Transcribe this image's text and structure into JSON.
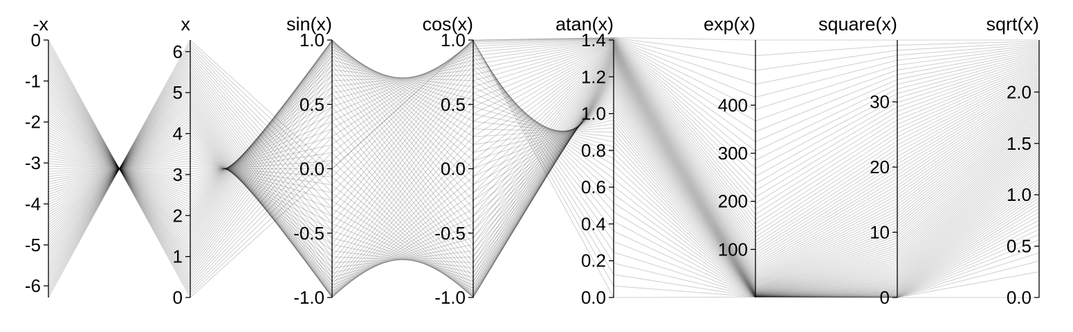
{
  "chart_data": {
    "type": "parallel_coordinates",
    "line_color": "#000000",
    "line_opacity": 0.18,
    "background": "#ffffff",
    "dimensions": [
      {
        "key": "neg_x",
        "label": "-x",
        "domain": [
          -6.2832,
          0
        ],
        "ticks": [
          0,
          -1,
          -2,
          -3,
          -4,
          -5,
          -6
        ],
        "tick_labels": [
          "0",
          "-1",
          "-2",
          "-3",
          "-4",
          "-5",
          "-6"
        ],
        "tick_side": "left"
      },
      {
        "key": "x",
        "label": "x",
        "domain": [
          0,
          6.2832
        ],
        "ticks": [
          0,
          1,
          2,
          3,
          4,
          5,
          6
        ],
        "tick_labels": [
          "0",
          "1",
          "2",
          "3",
          "4",
          "5",
          "6"
        ],
        "tick_side": "left"
      },
      {
        "key": "sin",
        "label": "sin(x)",
        "domain": [
          -1,
          1
        ],
        "ticks": [
          -1,
          -0.5,
          0,
          0.5,
          1
        ],
        "tick_labels": [
          "-1.0",
          "-0.5",
          "0.0",
          "0.5",
          "1.0"
        ],
        "tick_side": "left"
      },
      {
        "key": "cos",
        "label": "cos(x)",
        "domain": [
          -1,
          1
        ],
        "ticks": [
          -1,
          -0.5,
          0,
          0.5,
          1
        ],
        "tick_labels": [
          "-1.0",
          "-0.5",
          "0.0",
          "0.5",
          "1.0"
        ],
        "tick_side": "left"
      },
      {
        "key": "atan",
        "label": "atan(x)",
        "domain": [
          0,
          1.4
        ],
        "ticks": [
          0,
          0.2,
          0.4,
          0.6,
          0.8,
          1.0,
          1.2,
          1.4
        ],
        "tick_labels": [
          "0.0",
          "0.2",
          "0.4",
          "0.6",
          "0.8",
          "1.0",
          "1.2",
          "1.4"
        ],
        "tick_side": "left"
      },
      {
        "key": "exp",
        "label": "exp(x)",
        "domain": [
          0,
          535.49
        ],
        "ticks": [
          100,
          200,
          300,
          400
        ],
        "tick_labels": [
          "100",
          "200",
          "300",
          "400"
        ],
        "tick_side": "left"
      },
      {
        "key": "square",
        "label": "square(x)",
        "domain": [
          0,
          39.48
        ],
        "ticks": [
          0,
          10,
          20,
          30
        ],
        "tick_labels": [
          "0",
          "10",
          "20",
          "30"
        ],
        "tick_side": "left"
      },
      {
        "key": "sqrt",
        "label": "sqrt(x)",
        "domain": [
          0,
          2.5066
        ],
        "ticks": [
          0,
          0.5,
          1.0,
          1.5,
          2.0
        ],
        "tick_labels": [
          "0.0",
          "0.5",
          "1.0",
          "1.5",
          "2.0"
        ],
        "tick_side": "left"
      }
    ],
    "samples": {
      "x_start": 0,
      "x_end": 6.2832,
      "count": 101
    }
  }
}
